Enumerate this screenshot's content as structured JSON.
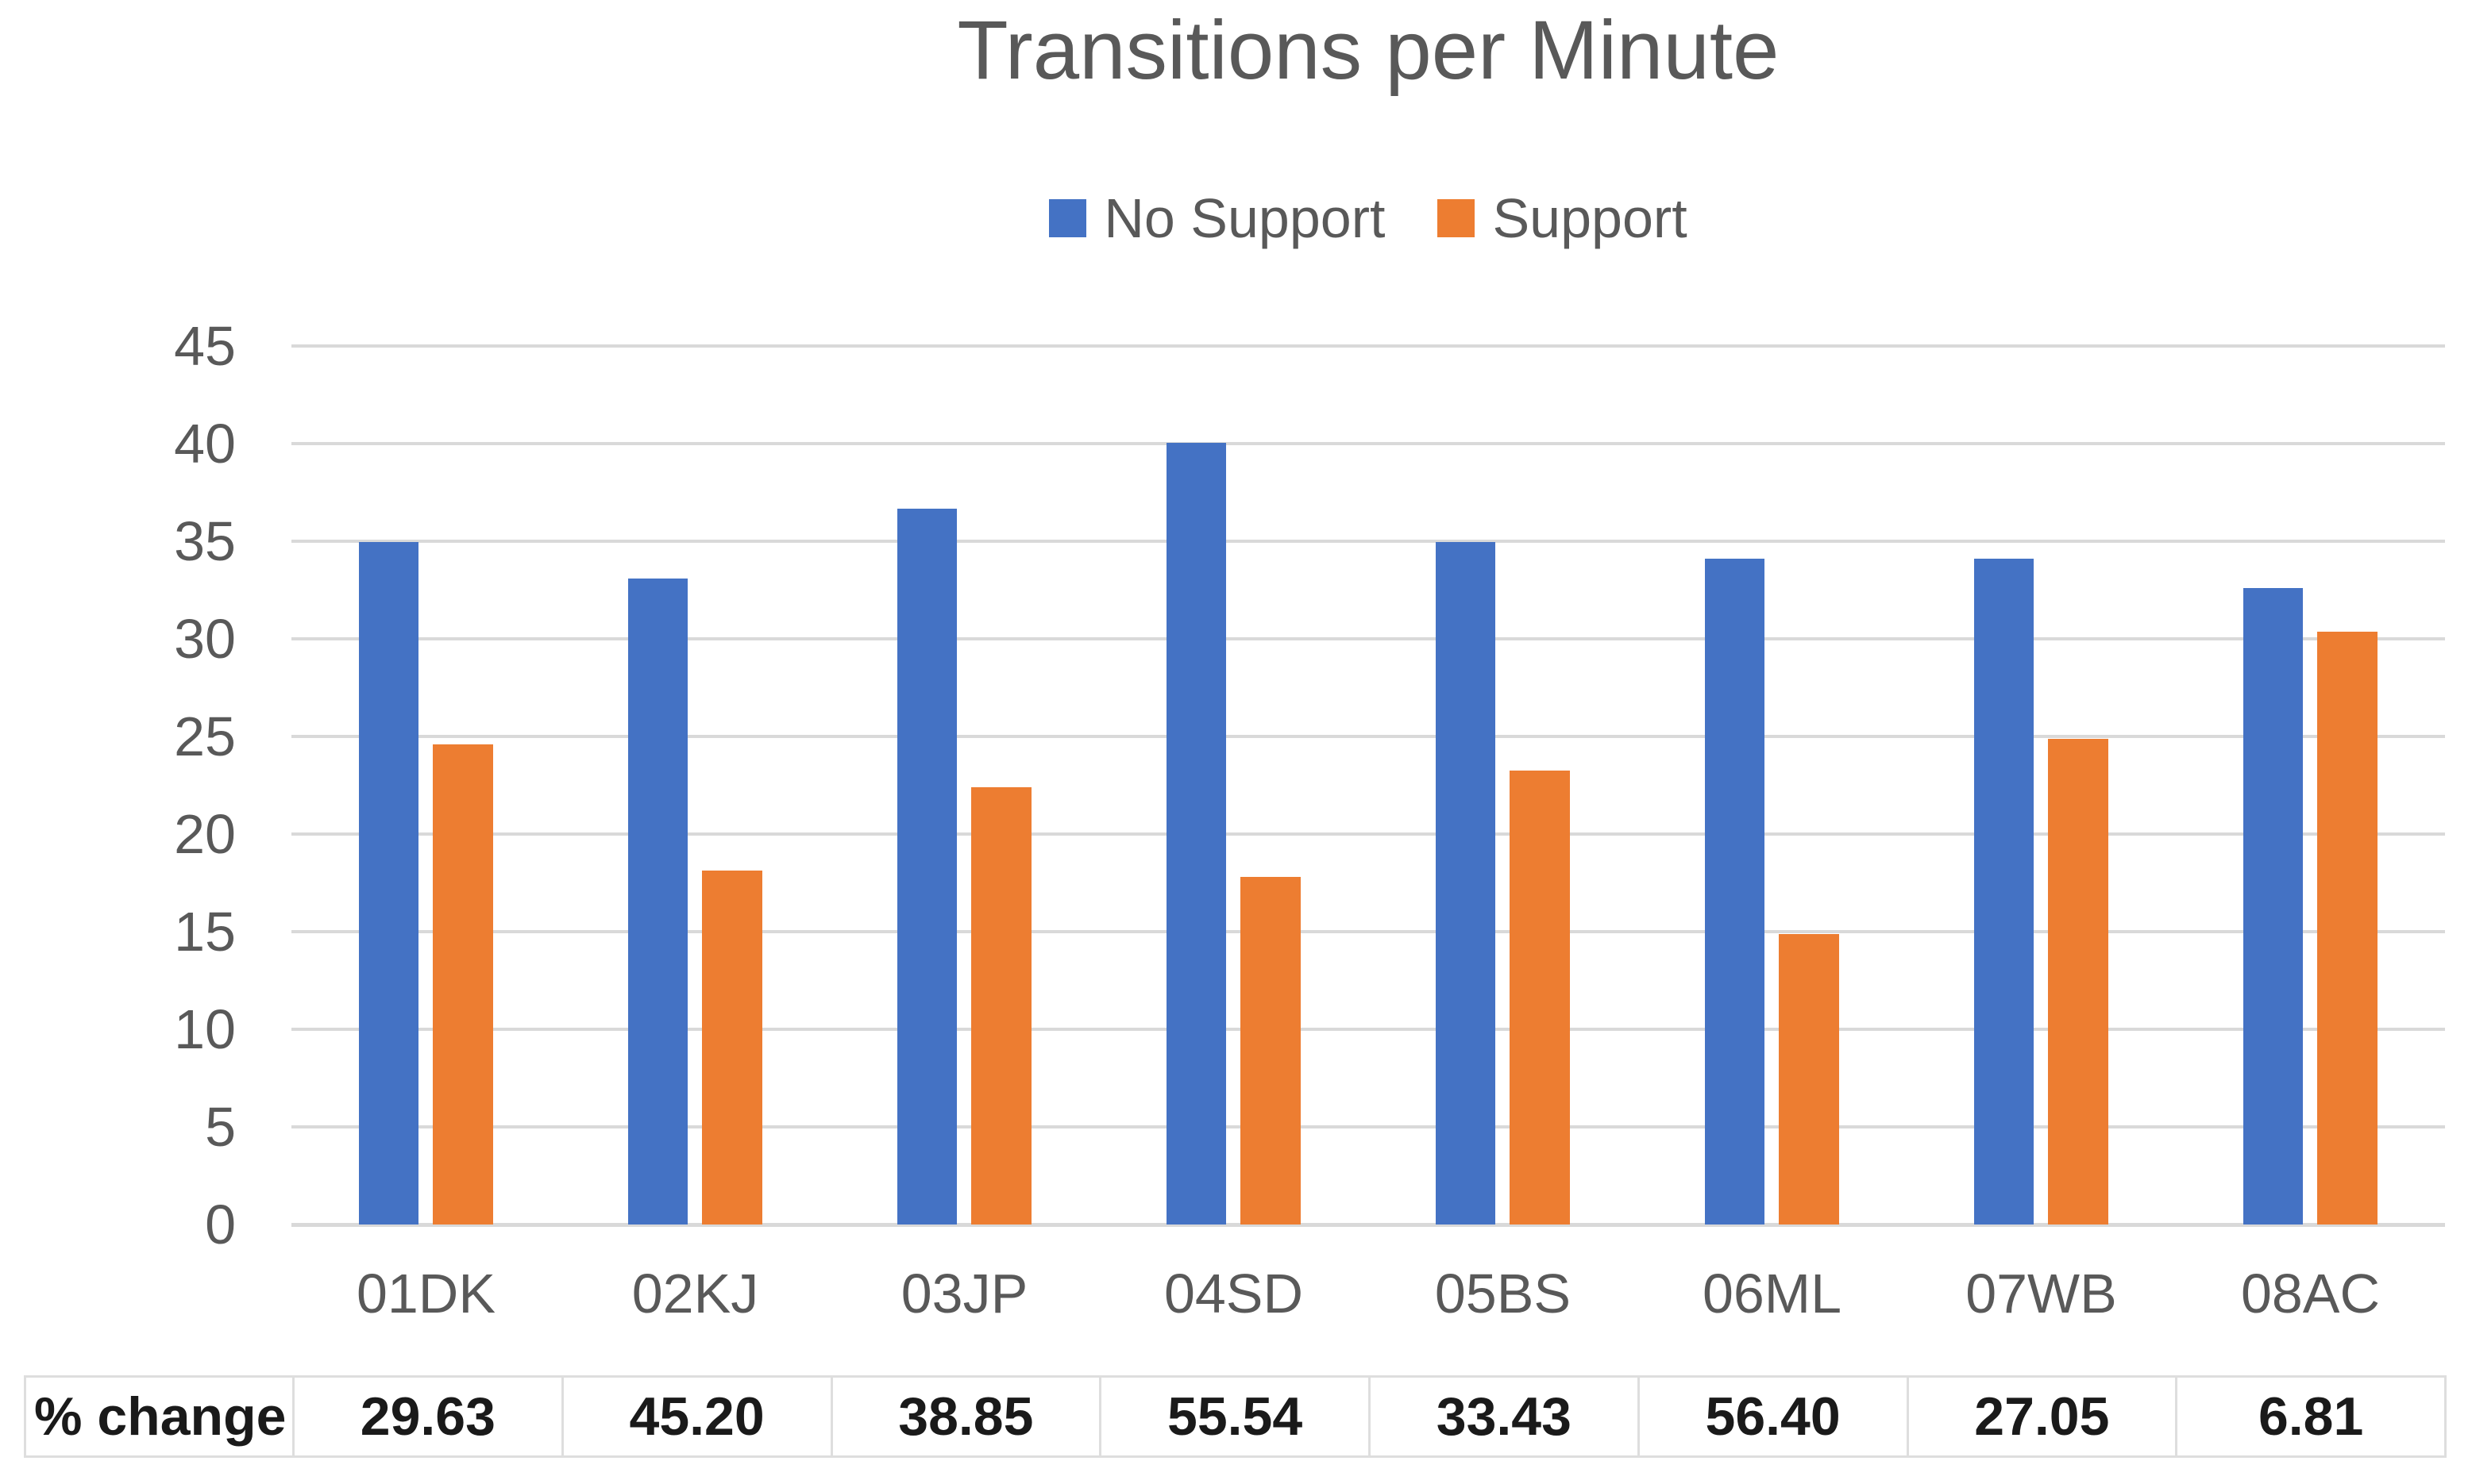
{
  "chart_data": {
    "type": "bar",
    "title": "Transitions per Minute",
    "categories": [
      "01DK",
      "02KJ",
      "03JP",
      "04SD",
      "05BS",
      "06ML",
      "07WB",
      "08AC"
    ],
    "series": [
      {
        "name": "No Support",
        "color": "#4472C4",
        "values": [
          34.95,
          33.1,
          36.65,
          40.05,
          34.95,
          34.1,
          34.1,
          32.6
        ]
      },
      {
        "name": "Support",
        "color": "#ED7D31",
        "values": [
          24.59,
          18.14,
          22.41,
          17.81,
          23.27,
          14.87,
          24.88,
          30.38
        ]
      }
    ],
    "xlabel": "",
    "ylabel": "",
    "ylim": [
      0,
      45
    ],
    "yticks": [
      0,
      5,
      10,
      15,
      20,
      25,
      30,
      35,
      40,
      45
    ],
    "grid": "horizontal",
    "legend_position": "top",
    "table_row": {
      "label": "% change",
      "values": [
        "29.63",
        "45.20",
        "38.85",
        "55.54",
        "33.43",
        "56.40",
        "27.05",
        "6.81"
      ]
    }
  },
  "colors": {
    "bar_no_support": "#4472C4",
    "bar_support": "#ED7D31",
    "gridline": "#D9D9D9",
    "axis_text": "#595959",
    "title_text": "#595959",
    "table_text": "#1A1A1A",
    "table_border": "#DEDEDE",
    "background": "#FFFFFF"
  }
}
